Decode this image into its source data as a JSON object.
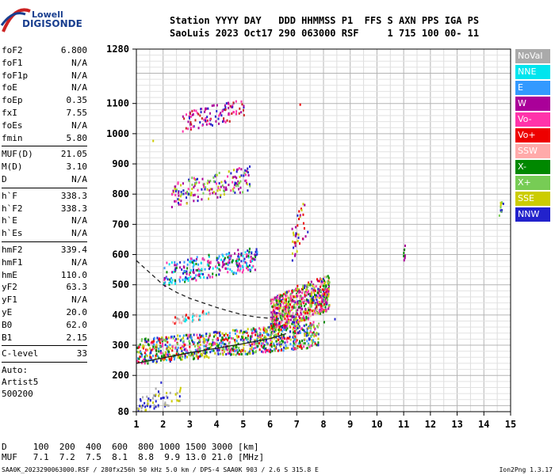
{
  "logo": {
    "line1": "Lowell",
    "line2": "DIGISONDE",
    "colors": [
      "#cc2222",
      "#1a3f8f"
    ]
  },
  "header": {
    "line1": "Station YYYY DAY   DDD HHMMSS P1  FFS S AXN PPS IGA PS",
    "line2": "SaoLuis 2023 Oct17 290 063000 RSF     1 715 100 00- 11"
  },
  "params": [
    {
      "k": "foF2",
      "v": "6.800"
    },
    {
      "k": "foF1",
      "v": "N/A"
    },
    {
      "k": "foF1p",
      "v": "N/A"
    },
    {
      "k": "foE",
      "v": "N/A"
    },
    {
      "k": "foEp",
      "v": "0.35"
    },
    {
      "k": "fxI",
      "v": "7.55"
    },
    {
      "k": "foEs",
      "v": "N/A"
    },
    {
      "k": "fmin",
      "v": "5.80"
    },
    {
      "sep": true
    },
    {
      "k": "MUF(D)",
      "v": "21.05"
    },
    {
      "k": "M(D)",
      "v": "3.10"
    },
    {
      "k": "D",
      "v": "N/A"
    },
    {
      "sep": true
    },
    {
      "k": "h`F",
      "v": "338.3"
    },
    {
      "k": "h`F2",
      "v": "338.3"
    },
    {
      "k": "h`E",
      "v": "N/A"
    },
    {
      "k": "h`Es",
      "v": "N/A"
    },
    {
      "sep": true
    },
    {
      "k": "hmF2",
      "v": "339.4"
    },
    {
      "k": "hmF1",
      "v": "N/A"
    },
    {
      "k": "hmE",
      "v": "110.0"
    },
    {
      "k": "yF2",
      "v": "63.3"
    },
    {
      "k": "yF1",
      "v": "N/A"
    },
    {
      "k": "yE",
      "v": "20.0"
    },
    {
      "k": "B0",
      "v": "62.0"
    },
    {
      "k": "B1",
      "v": "2.15"
    },
    {
      "sep": true
    },
    {
      "k": "C-level",
      "v": "33"
    },
    {
      "sep": true
    },
    {
      "text": "Auto:"
    },
    {
      "text": "Artist5"
    },
    {
      "text": "500200"
    }
  ],
  "legend": [
    {
      "label": "NoVal",
      "color": "#aaaaaa"
    },
    {
      "label": "NNE",
      "color": "#00e5ee"
    },
    {
      "label": "E",
      "color": "#3399ff"
    },
    {
      "label": "W",
      "color": "#aa0099"
    },
    {
      "label": "Vo-",
      "color": "#ff33aa"
    },
    {
      "label": "Vo+",
      "color": "#ee0000"
    },
    {
      "label": "SSW",
      "color": "#ffaaaa"
    },
    {
      "label": "X-",
      "color": "#008800"
    },
    {
      "label": "X+",
      "color": "#77cc55"
    },
    {
      "label": "SSE",
      "color": "#cccc00"
    },
    {
      "label": "NNW",
      "color": "#2222cc"
    }
  ],
  "chart_data": {
    "type": "scatter",
    "title": "",
    "xlabel": "",
    "ylabel": "",
    "xlim": [
      1,
      15
    ],
    "ylim": [
      80,
      1280
    ],
    "xticks": [
      "1",
      "2",
      "3",
      "4",
      "5",
      "6",
      "7",
      "8",
      "9",
      "10",
      "11",
      "12",
      "13",
      "14",
      "15"
    ],
    "yticks": [
      "80",
      "200",
      "300",
      "400",
      "500",
      "600",
      "700",
      "800",
      "900",
      "1000",
      "1100",
      "1280"
    ],
    "x_grid": [
      1,
      2,
      3,
      4,
      5,
      6,
      7,
      8,
      9,
      10,
      11,
      12,
      13,
      14,
      15
    ],
    "grid": true,
    "series": [
      {
        "name": "NoVal",
        "points": [
          [
            1.8,
            150
          ],
          [
            2.5,
            145
          ],
          [
            1.7,
            160
          ]
        ]
      },
      {
        "name": "NNE",
        "points": [
          [
            2.2,
            510
          ],
          [
            2.8,
            520
          ],
          [
            3.4,
            540
          ],
          [
            4.0,
            560
          ],
          [
            2.0,
            505
          ],
          [
            3.0,
            530
          ],
          [
            1.6,
            250
          ],
          [
            2.1,
            255
          ]
        ]
      },
      {
        "name": "E",
        "points": [
          [
            2.6,
            515
          ],
          [
            3.2,
            535
          ],
          [
            4.4,
            570
          ],
          [
            1.5,
            255
          ],
          [
            2.4,
            262
          ],
          [
            3.8,
            285
          ]
        ]
      },
      {
        "name": "W",
        "points": [
          [
            2.4,
            780
          ],
          [
            3.1,
            800
          ],
          [
            3.8,
            820
          ],
          [
            4.6,
            860
          ],
          [
            5.1,
            880
          ],
          [
            6.8,
            450
          ],
          [
            7.1,
            480
          ],
          [
            7.0,
            420
          ],
          [
            6.6,
            380
          ]
        ]
      },
      {
        "name": "Vo-",
        "points": [
          [
            2.9,
            1020
          ],
          [
            3.5,
            1050
          ],
          [
            4.2,
            1080
          ],
          [
            4.9,
            1110
          ],
          [
            6.7,
            400
          ],
          [
            7.2,
            460
          ],
          [
            7.4,
            390
          ],
          [
            6.9,
            360
          ],
          [
            7.6,
            380
          ]
        ]
      },
      {
        "name": "Vo+",
        "points": [
          [
            7.0,
            500
          ],
          [
            6.8,
            430
          ],
          [
            7.3,
            410
          ],
          [
            6.5,
            370
          ],
          [
            7.0,
            700
          ],
          [
            7.1,
            1100
          ],
          [
            6.9,
            350
          ]
        ]
      },
      {
        "name": "SSW",
        "points": [
          [
            6.3,
            400
          ],
          [
            6.0,
            390
          ],
          [
            7.8,
            370
          ],
          [
            6.6,
            420
          ]
        ]
      },
      {
        "name": "X-",
        "points": [
          [
            1.2,
            250
          ],
          [
            2.6,
            262
          ],
          [
            3.6,
            280
          ],
          [
            4.6,
            300
          ],
          [
            5.6,
            320
          ],
          [
            6.4,
            340
          ],
          [
            7.2,
            355
          ],
          [
            8.0,
            380
          ],
          [
            11.0,
            620
          ]
        ]
      },
      {
        "name": "X+",
        "points": [
          [
            1.4,
            252
          ],
          [
            3.0,
            270
          ],
          [
            4.2,
            292
          ],
          [
            5.2,
            312
          ],
          [
            6.2,
            335
          ],
          [
            7.6,
            370
          ],
          [
            14.6,
            760
          ]
        ]
      },
      {
        "name": "SSE",
        "points": [
          [
            1.6,
            980
          ],
          [
            2.0,
            255
          ],
          [
            3.4,
            275
          ],
          [
            5.0,
            305
          ],
          [
            6.0,
            330
          ],
          [
            7.4,
            360
          ],
          [
            14.6,
            775
          ]
        ]
      },
      {
        "name": "NNW",
        "points": [
          [
            1.3,
            100
          ],
          [
            1.5,
            102
          ],
          [
            1.7,
            100
          ],
          [
            1.8,
            150
          ],
          [
            1.9,
            180
          ],
          [
            2.0,
            130
          ],
          [
            1.6,
            250
          ],
          [
            2.8,
            268
          ],
          [
            4.0,
            288
          ],
          [
            5.4,
            316
          ],
          [
            6.2,
            330
          ],
          [
            6.6,
            480
          ],
          [
            7.0,
            360
          ],
          [
            8.4,
            390
          ],
          [
            14.6,
            750
          ]
        ]
      }
    ],
    "curves": [
      {
        "name": "profile",
        "style": "dashed",
        "points": [
          [
            1.0,
            580
          ],
          [
            1.5,
            540
          ],
          [
            2.0,
            500
          ],
          [
            2.5,
            475
          ],
          [
            3.0,
            455
          ],
          [
            3.5,
            440
          ],
          [
            4.0,
            425
          ],
          [
            4.5,
            412
          ],
          [
            5.0,
            400
          ],
          [
            5.5,
            393
          ],
          [
            6.0,
            389
          ]
        ]
      },
      {
        "name": "trace",
        "style": "solid",
        "points": [
          [
            1.0,
            240
          ],
          [
            2.0,
            258
          ],
          [
            3.0,
            275
          ],
          [
            4.0,
            290
          ],
          [
            5.0,
            305
          ],
          [
            6.0,
            322
          ],
          [
            6.6,
            338
          ]
        ]
      }
    ],
    "band_clusters": [
      {
        "x": [
          2.0,
          5.5
        ],
        "y": [
          500,
          630
        ],
        "colors": [
          "#00e5ee",
          "#3399ff",
          "#aa0099",
          "#ff33aa",
          "#2222cc",
          "#008800"
        ],
        "n": 260
      },
      {
        "x": [
          2.3,
          5.3
        ],
        "y": [
          760,
          900
        ],
        "colors": [
          "#aa0099",
          "#ff33aa",
          "#2222cc",
          "#77cc55",
          "#cccc00"
        ],
        "n": 170
      },
      {
        "x": [
          2.7,
          5.0
        ],
        "y": [
          1010,
          1120
        ],
        "colors": [
          "#ff33aa",
          "#aa0099",
          "#2222cc",
          "#cc2222"
        ],
        "n": 110
      },
      {
        "x": [
          1.0,
          7.8
        ],
        "y": [
          240,
          380
        ],
        "colors": [
          "#2222cc",
          "#008800",
          "#ee0000",
          "#ff33aa",
          "#3399ff",
          "#77cc55",
          "#cccc00"
        ],
        "n": 900
      },
      {
        "x": [
          6.0,
          8.2
        ],
        "y": [
          340,
          540
        ],
        "colors": [
          "#ee0000",
          "#ff33aa",
          "#aa0099",
          "#2222cc",
          "#ffaaaa",
          "#008800",
          "#77cc55",
          "#cccc00"
        ],
        "n": 700
      },
      {
        "x": [
          2.3,
          3.7
        ],
        "y": [
          370,
          420
        ],
        "colors": [
          "#aaaaaa",
          "#ffaaaa",
          "#ee0000",
          "#00e5ee"
        ],
        "n": 40
      },
      {
        "x": [
          1.0,
          2.7
        ],
        "y": [
          80,
          165
        ],
        "colors": [
          "#2222cc",
          "#aaaaaa",
          "#cccc00"
        ],
        "n": 60
      },
      {
        "x": [
          6.8,
          7.4
        ],
        "y": [
          580,
          800
        ],
        "colors": [
          "#ee0000",
          "#aa0099",
          "#cccc00",
          "#2222cc"
        ],
        "n": 40
      },
      {
        "x": [
          14.55,
          14.7
        ],
        "y": [
          730,
          790
        ],
        "colors": [
          "#2222cc",
          "#77cc55",
          "#cccc00"
        ],
        "n": 10
      },
      {
        "x": [
          10.95,
          11.05
        ],
        "y": [
          560,
          650
        ],
        "colors": [
          "#aa0099",
          "#008800",
          "#ee0000"
        ],
        "n": 8
      }
    ]
  },
  "bottom": {
    "line1": "D     100  200  400  600  800 1000 1500 3000 [km]",
    "line2": "MUF   7.1  7.2  7.5  8.1  8.8  9.9 13.0 21.0 [MHz]"
  },
  "footer": {
    "text": "SAA0K_2023290063000.RSF / 280fx256h 50 kHz 5.0 km / DPS-4 SAA0K 903 / 2.6 S 315.8 E",
    "version": "Ion2Png 1.3.17"
  }
}
